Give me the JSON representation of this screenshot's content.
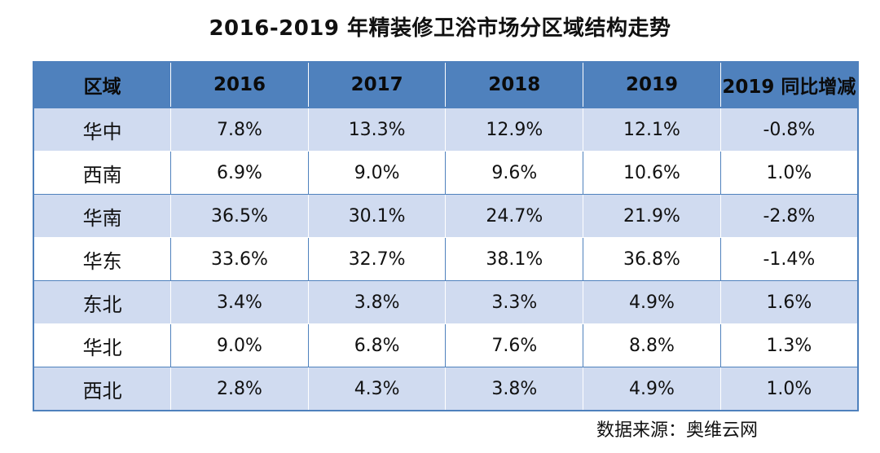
{
  "title": "2016-2019 年精装修卫浴市场分区域结构走势",
  "source": "数据来源：奥维云网",
  "chart_data": {
    "type": "table",
    "title": "2016-2019 年精装修卫浴市场分区域结构走势",
    "columns": [
      "区域",
      "2016",
      "2017",
      "2018",
      "2019",
      "2019 同比增减"
    ],
    "rows": [
      [
        "华中",
        "7.8%",
        "13.3%",
        "12.9%",
        "12.1%",
        "-0.8%"
      ],
      [
        "西南",
        "6.9%",
        "9.0%",
        "9.6%",
        "10.6%",
        "1.0%"
      ],
      [
        "华南",
        "36.5%",
        "30.1%",
        "24.7%",
        "21.9%",
        "-2.8%"
      ],
      [
        "华东",
        "33.6%",
        "32.7%",
        "38.1%",
        "36.8%",
        "-1.4%"
      ],
      [
        "东北",
        "3.4%",
        "3.8%",
        "3.3%",
        "4.9%",
        "1.6%"
      ],
      [
        "华北",
        "9.0%",
        "6.8%",
        "7.6%",
        "8.8%",
        "1.3%"
      ],
      [
        "西北",
        "2.8%",
        "4.3%",
        "3.8%",
        "4.9%",
        "1.0%"
      ]
    ]
  },
  "colors": {
    "header_bg": "#4f81bd",
    "band_bg": "#d0dbf0",
    "plain_bg": "#ffffff"
  }
}
